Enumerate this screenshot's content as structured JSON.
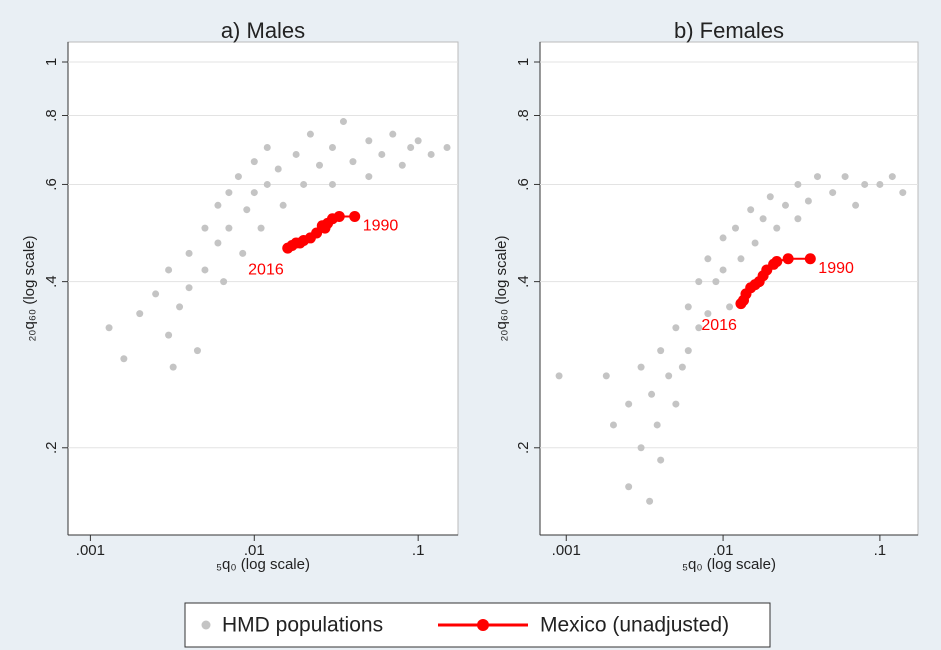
{
  "chart_data": [
    {
      "type": "scatter",
      "title": "a) Males",
      "xlabel": "₅q₀ (log scale)",
      "ylabel": "₂₀q₆₀ (log scale)",
      "log_x": true,
      "log_y": true,
      "grid": true,
      "xlim": [
        0.00073,
        0.175
      ],
      "ylim": [
        0.139,
        1.087
      ],
      "xticks": [
        {
          "value": 0.001,
          "label": ".001"
        },
        {
          "value": 0.01,
          "label": ".01"
        },
        {
          "value": 0.1,
          "label": ".1"
        }
      ],
      "yticks": [
        {
          "value": 0.2,
          "label": ".2"
        },
        {
          "value": 0.4,
          "label": ".4"
        },
        {
          "value": 0.6,
          "label": ".6"
        },
        {
          "value": 0.8,
          "label": ".8"
        },
        1
      ],
      "annotations": [
        "1990",
        "2016"
      ],
      "series": [
        {
          "name": "HMD populations",
          "color": "#c4c4c4",
          "x": [
            0.0013,
            0.0016,
            0.002,
            0.0025,
            0.003,
            0.003,
            0.0035,
            0.004,
            0.004,
            0.005,
            0.005,
            0.006,
            0.006,
            0.007,
            0.007,
            0.008,
            0.009,
            0.01,
            0.01,
            0.012,
            0.012,
            0.014,
            0.015,
            0.018,
            0.02,
            0.022,
            0.025,
            0.03,
            0.03,
            0.035,
            0.04,
            0.05,
            0.05,
            0.06,
            0.07,
            0.08,
            0.09,
            0.1,
            0.12,
            0.15,
            0.0045,
            0.0032,
            0.0065,
            0.011,
            0.0085
          ],
          "values": [
            0.33,
            0.29,
            0.35,
            0.38,
            0.32,
            0.42,
            0.36,
            0.45,
            0.39,
            0.5,
            0.42,
            0.55,
            0.47,
            0.58,
            0.5,
            0.62,
            0.54,
            0.66,
            0.58,
            0.6,
            0.7,
            0.64,
            0.55,
            0.68,
            0.6,
            0.74,
            0.65,
            0.7,
            0.6,
            0.78,
            0.66,
            0.72,
            0.62,
            0.68,
            0.74,
            0.65,
            0.7,
            0.72,
            0.68,
            0.7,
            0.3,
            0.28,
            0.4,
            0.5,
            0.45
          ]
        },
        {
          "name": "Mexico (unadjusted)",
          "color": "#ff0000",
          "x": [
            0.041,
            0.033,
            0.03,
            0.028,
            0.027,
            0.026,
            0.024,
            0.022,
            0.02,
            0.019,
            0.018,
            0.017,
            0.016
          ],
          "values": [
            0.525,
            0.525,
            0.52,
            0.51,
            0.5,
            0.505,
            0.49,
            0.48,
            0.475,
            0.47,
            0.47,
            0.465,
            0.46
          ]
        }
      ]
    },
    {
      "type": "scatter",
      "title": "b) Females",
      "xlabel": "₅q₀ (log scale)",
      "ylabel": "₂₀q₆₀ (log scale)",
      "log_x": true,
      "log_y": true,
      "grid": true,
      "xlim": [
        0.00068,
        0.175
      ],
      "ylim": [
        0.139,
        1.087
      ],
      "xticks": [
        {
          "value": 0.001,
          "label": ".001"
        },
        {
          "value": 0.01,
          "label": ".01"
        },
        {
          "value": 0.1,
          "label": ".1"
        }
      ],
      "yticks": [
        {
          "value": 0.2,
          "label": ".2"
        },
        {
          "value": 0.4,
          "label": ".4"
        },
        {
          "value": 0.6,
          "label": ".6"
        },
        {
          "value": 0.8,
          "label": ".8"
        },
        1
      ],
      "annotations": [
        "1990",
        "2016"
      ],
      "series": [
        {
          "color": "#c4c4c4",
          "x": [
            0.0009,
            0.0018,
            0.002,
            0.0025,
            0.0025,
            0.003,
            0.003,
            0.0035,
            0.004,
            0.004,
            0.0045,
            0.005,
            0.005,
            0.006,
            0.006,
            0.007,
            0.007,
            0.008,
            0.008,
            0.009,
            0.01,
            0.01,
            0.011,
            0.012,
            0.013,
            0.015,
            0.016,
            0.018,
            0.02,
            0.022,
            0.025,
            0.03,
            0.03,
            0.035,
            0.04,
            0.05,
            0.06,
            0.07,
            0.08,
            0.1,
            0.12,
            0.14,
            0.0038,
            0.0055,
            0.0034
          ],
          "values": [
            0.27,
            0.27,
            0.22,
            0.17,
            0.24,
            0.2,
            0.28,
            0.25,
            0.19,
            0.3,
            0.27,
            0.33,
            0.24,
            0.36,
            0.3,
            0.4,
            0.33,
            0.44,
            0.35,
            0.4,
            0.48,
            0.42,
            0.36,
            0.5,
            0.44,
            0.54,
            0.47,
            0.52,
            0.57,
            0.5,
            0.55,
            0.6,
            0.52,
            0.56,
            0.62,
            0.58,
            0.62,
            0.55,
            0.6,
            0.6,
            0.62,
            0.58,
            0.22,
            0.28,
            0.16
          ]
        },
        {
          "color": "#ff0000",
          "x": [
            0.036,
            0.026,
            0.022,
            0.021,
            0.019,
            0.018,
            0.017,
            0.016,
            0.015,
            0.014,
            0.0135,
            0.013
          ],
          "values": [
            0.44,
            0.44,
            0.435,
            0.43,
            0.42,
            0.41,
            0.4,
            0.395,
            0.39,
            0.38,
            0.37,
            0.365
          ]
        }
      ]
    }
  ]
}
